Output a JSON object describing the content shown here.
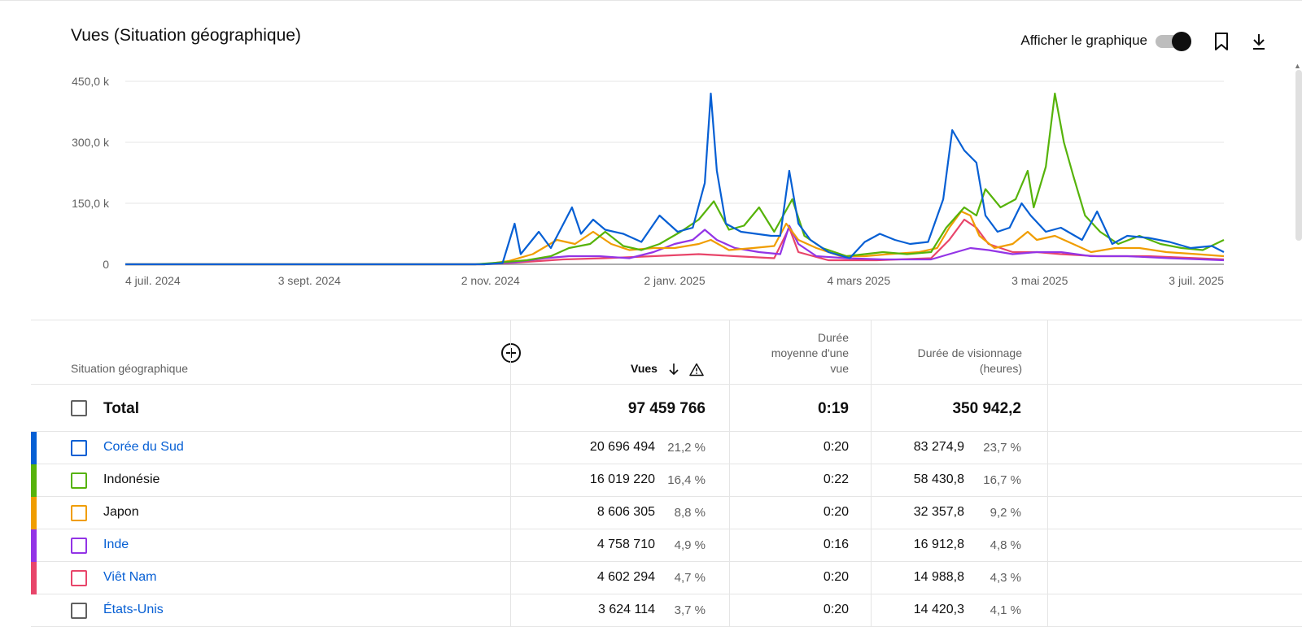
{
  "header": {
    "title": "Vues (Situation géographique)",
    "toggle_label": "Afficher le graphique"
  },
  "icons": {
    "bookmark": "bookmark-icon",
    "download": "download-icon",
    "add_column": "add-circle-icon",
    "sort": "arrow-down-icon",
    "warning": "warning-icon"
  },
  "chart_data": {
    "type": "line",
    "y_ticks": [
      "450,0 k",
      "300,0 k",
      "150,0 k",
      "0"
    ],
    "x_ticks": [
      "4 juil. 2024",
      "3 sept. 2024",
      "2 nov. 2024",
      "2 janv. 2025",
      "4 mars 2025",
      "3 mai 2025",
      "3 juil. 2025"
    ],
    "ylim": [
      0,
      450000
    ],
    "x_start": "2024-07-04",
    "x_end": "2025-07-03",
    "series": [
      {
        "name": "Corée du Sud",
        "color": "#065fd4",
        "points": [
          [
            "2024-07-04",
            0
          ],
          [
            "2024-10-31",
            0
          ],
          [
            "2024-11-06",
            3000
          ],
          [
            "2024-11-10",
            100000
          ],
          [
            "2024-11-12",
            25000
          ],
          [
            "2024-11-18",
            80000
          ],
          [
            "2024-11-22",
            40000
          ],
          [
            "2024-11-29",
            140000
          ],
          [
            "2024-12-02",
            75000
          ],
          [
            "2024-12-06",
            110000
          ],
          [
            "2024-12-10",
            85000
          ],
          [
            "2024-12-16",
            75000
          ],
          [
            "2024-12-22",
            55000
          ],
          [
            "2024-12-28",
            120000
          ],
          [
            "2025-01-03",
            80000
          ],
          [
            "2025-01-08",
            90000
          ],
          [
            "2025-01-12",
            200000
          ],
          [
            "2025-01-14",
            420000
          ],
          [
            "2025-01-16",
            230000
          ],
          [
            "2025-01-19",
            100000
          ],
          [
            "2025-01-24",
            80000
          ],
          [
            "2025-01-29",
            75000
          ],
          [
            "2025-02-03",
            70000
          ],
          [
            "2025-02-06",
            70000
          ],
          [
            "2025-02-09",
            230000
          ],
          [
            "2025-02-12",
            100000
          ],
          [
            "2025-02-16",
            60000
          ],
          [
            "2025-02-22",
            30000
          ],
          [
            "2025-03-01",
            15000
          ],
          [
            "2025-03-06",
            55000
          ],
          [
            "2025-03-11",
            75000
          ],
          [
            "2025-03-16",
            60000
          ],
          [
            "2025-03-21",
            50000
          ],
          [
            "2025-03-27",
            55000
          ],
          [
            "2025-04-01",
            160000
          ],
          [
            "2025-04-04",
            330000
          ],
          [
            "2025-04-08",
            280000
          ],
          [
            "2025-04-12",
            250000
          ],
          [
            "2025-04-15",
            120000
          ],
          [
            "2025-04-19",
            80000
          ],
          [
            "2025-04-23",
            90000
          ],
          [
            "2025-04-27",
            150000
          ],
          [
            "2025-04-30",
            120000
          ],
          [
            "2025-05-05",
            80000
          ],
          [
            "2025-05-10",
            90000
          ],
          [
            "2025-05-17",
            60000
          ],
          [
            "2025-05-22",
            130000
          ],
          [
            "2025-05-27",
            50000
          ],
          [
            "2025-06-01",
            70000
          ],
          [
            "2025-06-08",
            65000
          ],
          [
            "2025-06-15",
            55000
          ],
          [
            "2025-06-22",
            40000
          ],
          [
            "2025-06-29",
            45000
          ],
          [
            "2025-07-03",
            30000
          ]
        ]
      },
      {
        "name": "Indonésie",
        "color": "#56b30a",
        "points": [
          [
            "2024-07-04",
            0
          ],
          [
            "2024-10-28",
            0
          ],
          [
            "2024-11-06",
            5000
          ],
          [
            "2024-11-14",
            10000
          ],
          [
            "2024-11-22",
            20000
          ],
          [
            "2024-11-28",
            40000
          ],
          [
            "2024-12-05",
            50000
          ],
          [
            "2024-12-10",
            80000
          ],
          [
            "2024-12-16",
            45000
          ],
          [
            "2024-12-22",
            35000
          ],
          [
            "2024-12-28",
            50000
          ],
          [
            "2025-01-04",
            80000
          ],
          [
            "2025-01-10",
            110000
          ],
          [
            "2025-01-15",
            155000
          ],
          [
            "2025-01-20",
            85000
          ],
          [
            "2025-01-25",
            95000
          ],
          [
            "2025-01-30",
            140000
          ],
          [
            "2025-02-04",
            80000
          ],
          [
            "2025-02-10",
            160000
          ],
          [
            "2025-02-14",
            70000
          ],
          [
            "2025-02-20",
            40000
          ],
          [
            "2025-02-28",
            20000
          ],
          [
            "2025-03-06",
            25000
          ],
          [
            "2025-03-12",
            30000
          ],
          [
            "2025-03-20",
            25000
          ],
          [
            "2025-03-28",
            30000
          ],
          [
            "2025-04-02",
            90000
          ],
          [
            "2025-04-08",
            140000
          ],
          [
            "2025-04-12",
            120000
          ],
          [
            "2025-04-15",
            185000
          ],
          [
            "2025-04-20",
            140000
          ],
          [
            "2025-04-25",
            160000
          ],
          [
            "2025-04-29",
            230000
          ],
          [
            "2025-05-01",
            140000
          ],
          [
            "2025-05-05",
            240000
          ],
          [
            "2025-05-08",
            420000
          ],
          [
            "2025-05-11",
            300000
          ],
          [
            "2025-05-14",
            220000
          ],
          [
            "2025-05-18",
            120000
          ],
          [
            "2025-05-23",
            80000
          ],
          [
            "2025-05-29",
            50000
          ],
          [
            "2025-06-05",
            70000
          ],
          [
            "2025-06-12",
            50000
          ],
          [
            "2025-06-19",
            40000
          ],
          [
            "2025-06-26",
            35000
          ],
          [
            "2025-07-03",
            60000
          ]
        ]
      },
      {
        "name": "Japon",
        "color": "#f09d00",
        "points": [
          [
            "2024-07-04",
            0
          ],
          [
            "2024-10-31",
            0
          ],
          [
            "2024-11-08",
            8000
          ],
          [
            "2024-11-16",
            25000
          ],
          [
            "2024-11-24",
            60000
          ],
          [
            "2024-11-30",
            50000
          ],
          [
            "2024-12-06",
            80000
          ],
          [
            "2024-12-12",
            50000
          ],
          [
            "2024-12-18",
            35000
          ],
          [
            "2024-12-26",
            40000
          ],
          [
            "2025-01-02",
            40000
          ],
          [
            "2025-01-10",
            50000
          ],
          [
            "2025-01-14",
            60000
          ],
          [
            "2025-01-20",
            35000
          ],
          [
            "2025-01-28",
            40000
          ],
          [
            "2025-02-04",
            45000
          ],
          [
            "2025-02-08",
            100000
          ],
          [
            "2025-02-12",
            60000
          ],
          [
            "2025-02-18",
            40000
          ],
          [
            "2025-02-26",
            20000
          ],
          [
            "2025-03-06",
            20000
          ],
          [
            "2025-03-14",
            25000
          ],
          [
            "2025-03-24",
            30000
          ],
          [
            "2025-03-30",
            40000
          ],
          [
            "2025-04-03",
            90000
          ],
          [
            "2025-04-07",
            130000
          ],
          [
            "2025-04-10",
            120000
          ],
          [
            "2025-04-13",
            70000
          ],
          [
            "2025-04-18",
            40000
          ],
          [
            "2025-04-24",
            50000
          ],
          [
            "2025-04-29",
            80000
          ],
          [
            "2025-05-02",
            60000
          ],
          [
            "2025-05-08",
            70000
          ],
          [
            "2025-05-14",
            50000
          ],
          [
            "2025-05-20",
            30000
          ],
          [
            "2025-05-28",
            40000
          ],
          [
            "2025-06-05",
            40000
          ],
          [
            "2025-06-14",
            30000
          ],
          [
            "2025-06-24",
            25000
          ],
          [
            "2025-07-03",
            20000
          ]
        ]
      },
      {
        "name": "Inde",
        "color": "#9334e6",
        "points": [
          [
            "2024-07-04",
            0
          ],
          [
            "2024-10-28",
            0
          ],
          [
            "2024-11-10",
            5000
          ],
          [
            "2024-11-20",
            15000
          ],
          [
            "2024-11-28",
            20000
          ],
          [
            "2024-12-08",
            20000
          ],
          [
            "2024-12-18",
            15000
          ],
          [
            "2024-12-26",
            30000
          ],
          [
            "2025-01-02",
            50000
          ],
          [
            "2025-01-08",
            60000
          ],
          [
            "2025-01-12",
            85000
          ],
          [
            "2025-01-16",
            60000
          ],
          [
            "2025-01-22",
            40000
          ],
          [
            "2025-01-30",
            30000
          ],
          [
            "2025-02-06",
            25000
          ],
          [
            "2025-02-09",
            95000
          ],
          [
            "2025-02-12",
            50000
          ],
          [
            "2025-02-18",
            20000
          ],
          [
            "2025-02-28",
            15000
          ],
          [
            "2025-03-12",
            12000
          ],
          [
            "2025-03-28",
            12000
          ],
          [
            "2025-04-03",
            25000
          ],
          [
            "2025-04-10",
            40000
          ],
          [
            "2025-04-16",
            35000
          ],
          [
            "2025-04-24",
            25000
          ],
          [
            "2025-05-02",
            30000
          ],
          [
            "2025-05-10",
            30000
          ],
          [
            "2025-05-20",
            20000
          ],
          [
            "2025-06-01",
            20000
          ],
          [
            "2025-06-15",
            15000
          ],
          [
            "2025-07-03",
            10000
          ]
        ]
      },
      {
        "name": "Viêt Nam",
        "color": "#e8456a",
        "points": [
          [
            "2024-07-04",
            0
          ],
          [
            "2024-10-31",
            0
          ],
          [
            "2024-11-12",
            5000
          ],
          [
            "2024-11-26",
            12000
          ],
          [
            "2024-12-10",
            15000
          ],
          [
            "2024-12-26",
            20000
          ],
          [
            "2025-01-10",
            25000
          ],
          [
            "2025-01-22",
            20000
          ],
          [
            "2025-02-04",
            15000
          ],
          [
            "2025-02-09",
            90000
          ],
          [
            "2025-02-12",
            30000
          ],
          [
            "2025-02-22",
            10000
          ],
          [
            "2025-03-10",
            10000
          ],
          [
            "2025-03-28",
            15000
          ],
          [
            "2025-04-03",
            60000
          ],
          [
            "2025-04-08",
            110000
          ],
          [
            "2025-04-12",
            90000
          ],
          [
            "2025-04-16",
            50000
          ],
          [
            "2025-04-24",
            30000
          ],
          [
            "2025-05-02",
            30000
          ],
          [
            "2025-05-10",
            25000
          ],
          [
            "2025-05-22",
            20000
          ],
          [
            "2025-06-08",
            20000
          ],
          [
            "2025-06-24",
            15000
          ],
          [
            "2025-07-03",
            12000
          ]
        ]
      }
    ]
  },
  "table": {
    "col_location": "Situation géographique",
    "col_views": "Vues",
    "col_avg_duration": [
      "Durée",
      "moyenne d'une",
      "vue"
    ],
    "col_watch_time": [
      "Durée de visionnage",
      "(heures)"
    ],
    "total": {
      "label": "Total",
      "views": "97 459 766",
      "avg": "0:19",
      "watch": "350 942,2"
    },
    "rows": [
      {
        "name": "Corée du Sud",
        "color": "#065fd4",
        "link": true,
        "views": "20 696 494",
        "views_pct": "21,2 %",
        "avg": "0:20",
        "watch": "83 274,9",
        "watch_pct": "23,7 %"
      },
      {
        "name": "Indonésie",
        "color": "#56b30a",
        "link": false,
        "views": "16 019 220",
        "views_pct": "16,4 %",
        "avg": "0:22",
        "watch": "58 430,8",
        "watch_pct": "16,7 %"
      },
      {
        "name": "Japon",
        "color": "#f09d00",
        "link": false,
        "views": "8 606 305",
        "views_pct": "8,8 %",
        "avg": "0:20",
        "watch": "32 357,8",
        "watch_pct": "9,2 %"
      },
      {
        "name": "Inde",
        "color": "#9334e6",
        "link": true,
        "views": "4 758 710",
        "views_pct": "4,9 %",
        "avg": "0:16",
        "watch": "16 912,8",
        "watch_pct": "4,8 %"
      },
      {
        "name": "Viêt Nam",
        "color": "#e8456a",
        "link": true,
        "views": "4 602 294",
        "views_pct": "4,7 %",
        "avg": "0:20",
        "watch": "14 988,8",
        "watch_pct": "4,3 %"
      },
      {
        "name": "États-Unis",
        "color": "#909090",
        "link": true,
        "views": "3 624 114",
        "views_pct": "3,7 %",
        "avg": "0:20",
        "watch": "14 420,3",
        "watch_pct": "4,1 %"
      }
    ]
  }
}
